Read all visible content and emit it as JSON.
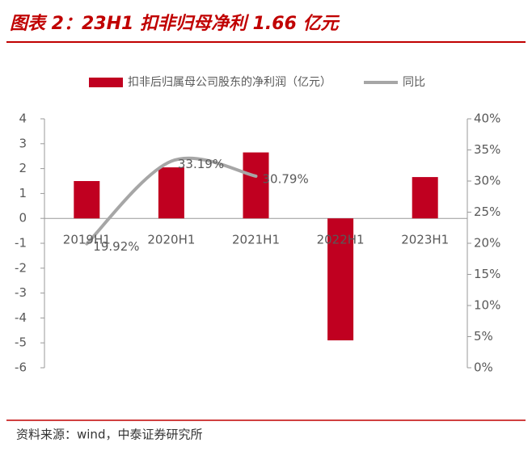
{
  "chart_data": {
    "type": "bar_line",
    "title": "图表 2：23H1 扣非归母净利 1.66 亿元",
    "source": "资料来源：wind，中泰证券研究所",
    "categories": [
      "2019H1",
      "2020H1",
      "2021H1",
      "2022H1",
      "2023H1"
    ],
    "series": [
      {
        "name": "扣非后归属母公司股东的净利润（亿元）",
        "type": "bar",
        "color": "#c00020",
        "values": [
          1.5,
          2.05,
          2.65,
          -4.9,
          1.66
        ]
      },
      {
        "name": "同比",
        "type": "line",
        "axis": "y2",
        "color": "#a6a6a6",
        "values": [
          19.92,
          33.19,
          30.79,
          null,
          null
        ],
        "value_labels": [
          "19.92%",
          "33.19%",
          "30.79%",
          null,
          null
        ]
      }
    ],
    "ylim": [
      -6,
      4
    ],
    "yticks": [
      4,
      3,
      2,
      1,
      0,
      -1,
      -2,
      -3,
      -4,
      -5,
      -6
    ],
    "y2lim": [
      0,
      40
    ],
    "y2ticks": [
      {
        "value": 40,
        "label": "40%"
      },
      {
        "value": 35,
        "label": "35%"
      },
      {
        "value": 30,
        "label": "30%"
      },
      {
        "value": 25,
        "label": "25%"
      },
      {
        "value": 20,
        "label": "20%"
      },
      {
        "value": 15,
        "label": "15%"
      },
      {
        "value": 10,
        "label": "10%"
      },
      {
        "value": 5,
        "label": "5%"
      },
      {
        "value": 0,
        "label": "0%"
      }
    ]
  }
}
